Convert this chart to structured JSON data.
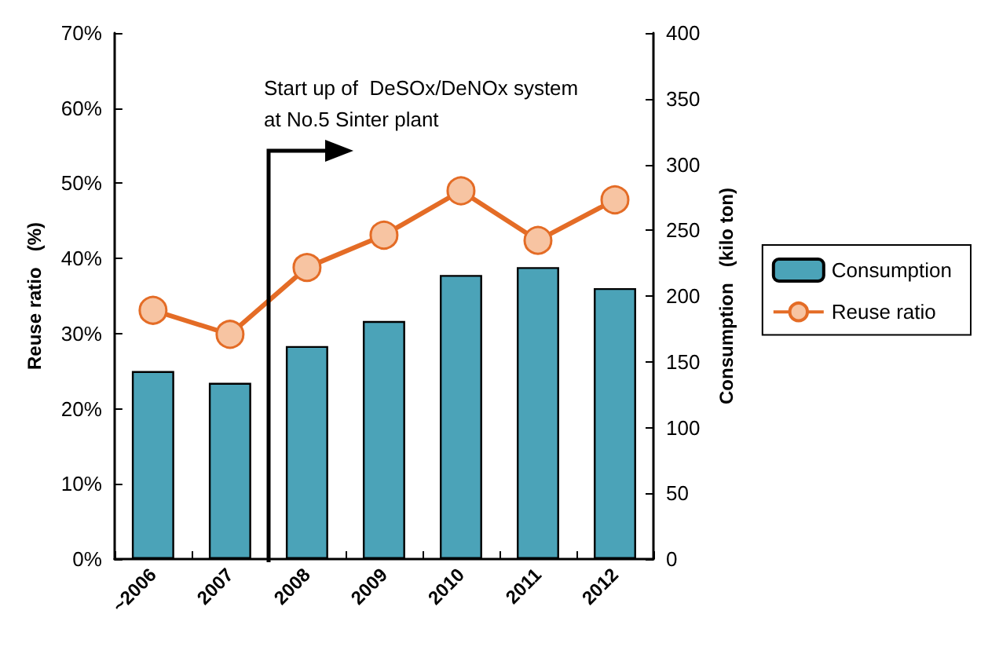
{
  "chart_data": {
    "type": "bar",
    "categories": [
      "~2006",
      "2007",
      "2008",
      "2009",
      "2010",
      "2011",
      "2012"
    ],
    "series": [
      {
        "name": "Consumption",
        "axis": "y2",
        "color": "#4ba3b8",
        "values": [
          143,
          134,
          162,
          181,
          216,
          222,
          206
        ]
      },
      {
        "name": "Reuse ratio",
        "type": "line",
        "axis": "y",
        "color": "#e46c26",
        "marker": "circle",
        "values": [
          33.1,
          29.9,
          38.8,
          43.1,
          49.0,
          42.4,
          47.8
        ]
      }
    ],
    "ylabel": "Reuse ratio   (%)",
    "y2label": "Consumption   (kilo ton)",
    "ylim": [
      0,
      70
    ],
    "yticks": [
      {
        "value": 0,
        "label": "0%"
      },
      {
        "value": 10,
        "label": "10%"
      },
      {
        "value": 20,
        "label": "20%"
      },
      {
        "value": 30,
        "label": "30%"
      },
      {
        "value": 40,
        "label": "40%"
      },
      {
        "value": 50,
        "label": "50%"
      },
      {
        "value": 60,
        "label": "60%"
      },
      {
        "value": 70,
        "label": "70%"
      }
    ],
    "y2lim": [
      0,
      400
    ],
    "y2ticks": [
      0,
      50,
      100,
      150,
      200,
      250,
      300,
      350,
      400
    ],
    "annotations": [
      "Start up of  DeSOx/DeNOx system\nat No.5 Sinter plant"
    ],
    "legend": "right",
    "grid": false
  }
}
